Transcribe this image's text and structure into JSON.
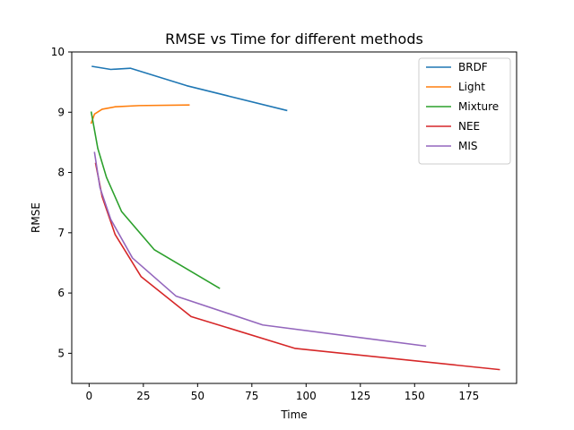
{
  "chart_data": {
    "type": "line",
    "title": "RMSE vs Time for different methods",
    "xlabel": "Time",
    "ylabel": "RMSE",
    "xlim": [
      -8,
      197
    ],
    "ylim": [
      4.5,
      10
    ],
    "xticks": [
      0,
      25,
      50,
      75,
      100,
      125,
      150,
      175
    ],
    "yticks": [
      5,
      6,
      7,
      8,
      9,
      10
    ],
    "grid": false,
    "legend_position": "top-right",
    "series": [
      {
        "name": "BRDF",
        "color": "#1f77b4",
        "x": [
          1.5,
          10,
          19,
          45,
          91
        ],
        "y": [
          9.76,
          9.71,
          9.73,
          9.44,
          9.03
        ]
      },
      {
        "name": "Light",
        "color": "#ff7f0e",
        "x": [
          1,
          2.5,
          6,
          12,
          23,
          46
        ],
        "y": [
          8.82,
          8.97,
          9.05,
          9.09,
          9.11,
          9.12
        ]
      },
      {
        "name": "Mixture",
        "color": "#2ca02c",
        "x": [
          1,
          4,
          8,
          15,
          30,
          60
        ],
        "y": [
          9.0,
          8.4,
          7.92,
          7.35,
          6.72,
          6.08
        ]
      },
      {
        "name": "NEE",
        "color": "#d62728",
        "x": [
          3,
          6,
          12,
          24,
          47,
          95,
          189
        ],
        "y": [
          8.15,
          7.6,
          6.97,
          6.27,
          5.61,
          5.08,
          4.73
        ]
      },
      {
        "name": "MIS",
        "color": "#9467bd",
        "x": [
          2.5,
          5,
          10,
          20,
          40,
          80,
          155
        ],
        "y": [
          8.33,
          7.75,
          7.22,
          6.58,
          5.95,
          5.47,
          5.12
        ]
      }
    ]
  }
}
